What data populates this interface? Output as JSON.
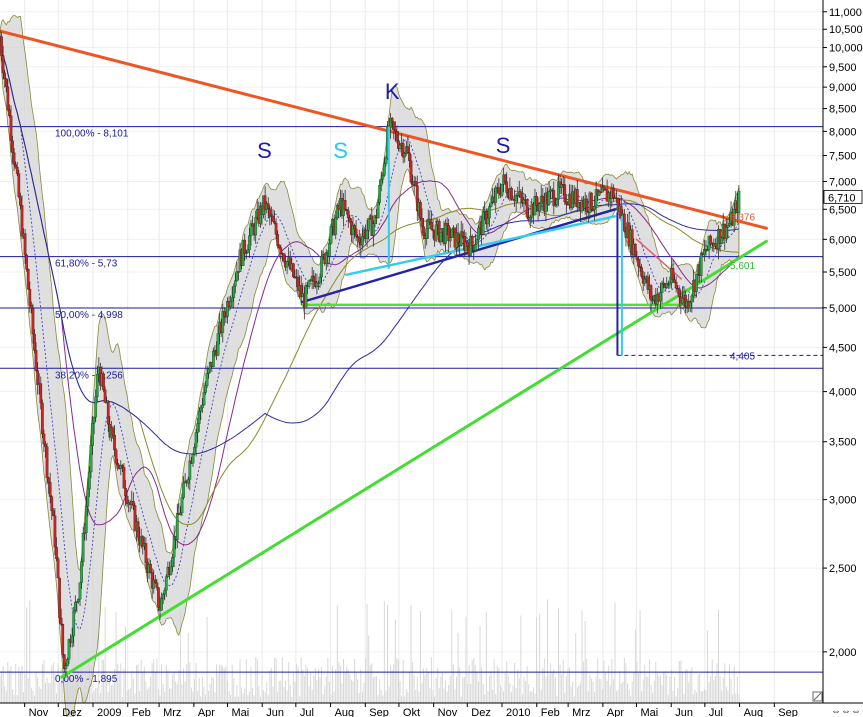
{
  "chart_data": {
    "type": "candlestick",
    "y_scale": "log",
    "ylim": [
      1.75,
      11.2
    ],
    "xlim": [
      "2008-10-10",
      "2010-09-15"
    ],
    "y_ticks": [
      {
        "v": 11.0,
        "label": "11,000"
      },
      {
        "v": 10.5,
        "label": "10,500"
      },
      {
        "v": 10.0,
        "label": "10,000"
      },
      {
        "v": 9.5,
        "label": "9,500"
      },
      {
        "v": 9.0,
        "label": "9,000"
      },
      {
        "v": 8.5,
        "label": "8,500"
      },
      {
        "v": 8.0,
        "label": "8,000"
      },
      {
        "v": 7.5,
        "label": "7,500"
      },
      {
        "v": 7.0,
        "label": "7,000"
      },
      {
        "v": 6.5,
        "label": "6,500"
      },
      {
        "v": 6.0,
        "label": "6,000"
      },
      {
        "v": 5.5,
        "label": "5,500"
      },
      {
        "v": 5.0,
        "label": "5,000"
      },
      {
        "v": 4.5,
        "label": "4,500"
      },
      {
        "v": 4.0,
        "label": "4,000"
      },
      {
        "v": 3.5,
        "label": "3,500"
      },
      {
        "v": 3.0,
        "label": "3,000"
      },
      {
        "v": 2.5,
        "label": "2,500"
      },
      {
        "v": 2.0,
        "label": "2,000"
      }
    ],
    "x_ticks": [
      {
        "date": "2008-11-01",
        "label": "Nov"
      },
      {
        "date": "2008-12-01",
        "label": "Dez"
      },
      {
        "date": "2009-01-01",
        "label": "2009"
      },
      {
        "date": "2009-02-01",
        "label": "Feb"
      },
      {
        "date": "2009-03-01",
        "label": "Mrz"
      },
      {
        "date": "2009-04-01",
        "label": "Apr"
      },
      {
        "date": "2009-05-01",
        "label": "Mai"
      },
      {
        "date": "2009-06-01",
        "label": "Jun"
      },
      {
        "date": "2009-07-01",
        "label": "Jul"
      },
      {
        "date": "2009-08-01",
        "label": "Aug"
      },
      {
        "date": "2009-09-01",
        "label": "Sep"
      },
      {
        "date": "2009-10-01",
        "label": "Okt"
      },
      {
        "date": "2009-11-01",
        "label": "Nov"
      },
      {
        "date": "2009-12-01",
        "label": "Dez"
      },
      {
        "date": "2010-01-01",
        "label": "2010"
      },
      {
        "date": "2010-02-01",
        "label": "Feb"
      },
      {
        "date": "2010-03-01",
        "label": "Mrz"
      },
      {
        "date": "2010-04-01",
        "label": "Apr"
      },
      {
        "date": "2010-05-01",
        "label": "Mai"
      },
      {
        "date": "2010-06-01",
        "label": "Jun"
      },
      {
        "date": "2010-07-01",
        "label": "Jul"
      },
      {
        "date": "2010-08-01",
        "label": "Aug"
      },
      {
        "date": "2010-09-01",
        "label": "Sep"
      }
    ],
    "last_price": {
      "value": 6.71,
      "label": "6,710"
    },
    "fib_levels": [
      {
        "v": 8.101,
        "label": "100,00% - 8,101"
      },
      {
        "v": 5.73,
        "label": "61,80% - 5,73"
      },
      {
        "v": 4.998,
        "label": "50,00% - 4,998"
      },
      {
        "v": 4.256,
        "label": "38,20% - 4,256"
      },
      {
        "v": 1.895,
        "label": "0,00% - 1,895"
      }
    ],
    "level_labels": [
      {
        "v": 6.376,
        "label": "6,376",
        "color": "#e06030"
      },
      {
        "v": 5.601,
        "label": "5,601",
        "color": "#2db82d"
      },
      {
        "v": 4.405,
        "label": "4,405",
        "color": "#1a1aa0"
      }
    ],
    "pattern_labels": [
      {
        "text": "S",
        "date": "2009-06-03",
        "v": 7.45,
        "color": "#1a1ab0"
      },
      {
        "text": "S",
        "date": "2009-08-10",
        "v": 7.45,
        "color": "#22ccee"
      },
      {
        "text": "K",
        "date": "2009-09-25",
        "v": 8.72,
        "color": "#1a1ab0"
      },
      {
        "text": "S",
        "date": "2010-01-02",
        "v": 7.55,
        "color": "#1a1ab0"
      }
    ],
    "trendlines": [
      {
        "name": "resistance",
        "color": "#ee5522",
        "from": [
          "2008-10-10",
          10.45
        ],
        "to": [
          "2010-08-25",
          6.18
        ]
      },
      {
        "name": "support",
        "color": "#44dd33",
        "from": [
          "2008-12-04",
          1.87
        ],
        "to": [
          "2010-08-25",
          5.97
        ]
      },
      {
        "name": "neckline",
        "color": "#2222aa",
        "from": [
          "2009-07-07",
          5.08
        ],
        "to": [
          "2010-04-12",
          6.5
        ]
      },
      {
        "name": "neckline-inner",
        "color": "#33ccee",
        "from": [
          "2009-08-15",
          5.46
        ],
        "to": [
          "2010-04-12",
          6.38
        ]
      },
      {
        "name": "base-line",
        "color": "#55dd33",
        "from": [
          "2009-07-07",
          5.04
        ],
        "to": [
          "2010-06-15",
          5.04
        ]
      },
      {
        "name": "pullback",
        "color": "#e06070",
        "from": [
          "2010-05-01",
          6.0
        ],
        "to": [
          "2010-06-10",
          5.4
        ]
      }
    ]
  }
}
